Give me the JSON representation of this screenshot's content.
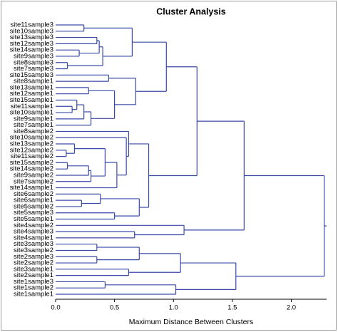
{
  "chart_data": {
    "type": "dendrogram",
    "title": "Cluster Analysis",
    "x_label": "Maximum Distance Between Clusters",
    "color": "#3a4aa8",
    "xlim": [
      0,
      2.3
    ],
    "xticks": [
      {
        "value": 0,
        "label": "0.0"
      },
      0.5,
      {
        "value": 1,
        "label": "1.0"
      },
      1.5,
      {
        "value": 2,
        "label": "2.0"
      }
    ],
    "tree": {
      "height": 2.28,
      "children": [
        {
          "height": 1.6,
          "children": [
            {
              "height": 1.2,
              "children": [
                {
                  "height": 0.94,
                  "children": [
                    {
                      "height": 0.65,
                      "children": [
                        {
                          "height": 0.24,
                          "children": [
                            {
                              "label": "site11sample3"
                            },
                            {
                              "label": "site10sample3"
                            }
                          ]
                        },
                        {
                          "height": 0.4,
                          "children": [
                            {
                              "height": 0.37,
                              "children": [
                                {
                                  "height": 0.35,
                                  "children": [
                                    {
                                      "label": "site13sample3"
                                    },
                                    {
                                      "label": "site12sample3"
                                    }
                                  ]
                                },
                                {
                                  "height": 0.2,
                                  "children": [
                                    {
                                      "label": "site14sample3"
                                    },
                                    {
                                      "label": "site9sample3"
                                    }
                                  ]
                                }
                              ]
                            },
                            {
                              "height": 0.1,
                              "children": [
                                {
                                  "label": "site8sample3"
                                },
                                {
                                  "label": "site7sample3"
                                }
                              ]
                            }
                          ]
                        }
                      ]
                    },
                    {
                      "height": 0.68,
                      "children": [
                        {
                          "height": 0.45,
                          "children": [
                            {
                              "label": "site15sample3"
                            },
                            {
                              "label": "site8sample1"
                            }
                          ]
                        },
                        {
                          "height": 0.5,
                          "children": [
                            {
                              "height": 0.28,
                              "children": [
                                {
                                  "label": "site13sample1"
                                },
                                {
                                  "label": "site12sample1"
                                }
                              ]
                            },
                            {
                              "height": 0.3,
                              "children": [
                                {
                                  "height": 0.24,
                                  "children": [
                                    {
                                      "height": 0.18,
                                      "children": [
                                        {
                                          "label": "site15sample1"
                                        },
                                        {
                                          "height": 0.14,
                                          "children": [
                                            {
                                              "label": "site11sample1"
                                            },
                                            {
                                              "label": "site10sample1"
                                            }
                                          ]
                                        }
                                      ]
                                    },
                                    {
                                      "label": "site9sample1"
                                    }
                                  ]
                                },
                                {
                                  "label": "site7sample1"
                                }
                              ]
                            }
                          ]
                        }
                      ]
                    }
                  ]
                },
                {
                  "height": 0.79,
                  "children": [
                    {
                      "height": 0.62,
                      "children": [
                        {
                          "label": "site8sample2"
                        },
                        {
                          "height": 0.6,
                          "children": [
                            {
                              "label": "site10sample2"
                            },
                            {
                              "height": 0.52,
                              "children": [
                                {
                                  "height": 0.42,
                                  "children": [
                                    {
                                      "height": 0.16,
                                      "children": [
                                        {
                                          "label": "site13sample2"
                                        },
                                        {
                                          "height": 0.09,
                                          "children": [
                                            {
                                              "label": "site12sample2"
                                            },
                                            {
                                              "label": "site11sample2"
                                            }
                                          ]
                                        }
                                      ]
                                    },
                                    {
                                      "height": 0.3,
                                      "children": [
                                        {
                                          "height": 0.28,
                                          "children": [
                                            {
                                              "height": 0.1,
                                              "children": [
                                                {
                                                  "label": "site15sample2"
                                                },
                                                {
                                                  "label": "site14sample2"
                                                }
                                              ]
                                            },
                                            {
                                              "label": "site9sample2"
                                            }
                                          ]
                                        },
                                        {
                                          "label": "site7sample2"
                                        }
                                      ]
                                    }
                                  ]
                                },
                                {
                                  "label": "site14sample1"
                                }
                              ]
                            }
                          ]
                        }
                      ]
                    },
                    {
                      "height": 0.71,
                      "children": [
                        {
                          "height": 0.38,
                          "children": [
                            {
                              "label": "site6sample2"
                            },
                            {
                              "height": 0.22,
                              "children": [
                                {
                                  "label": "site6sample1"
                                },
                                {
                                  "label": "site5sample2"
                                }
                              ]
                            }
                          ]
                        },
                        {
                          "height": 0.5,
                          "children": [
                            {
                              "label": "site5sample3"
                            },
                            {
                              "label": "site5sample1"
                            }
                          ]
                        }
                      ]
                    }
                  ]
                }
              ]
            },
            {
              "height": 1.09,
              "children": [
                {
                  "label": "site4sample2"
                },
                {
                  "height": 0.67,
                  "children": [
                    {
                      "label": "site4sample3"
                    },
                    {
                      "label": "site4sample1"
                    }
                  ]
                }
              ]
            }
          ]
        },
        {
          "height": 1.53,
          "children": [
            {
              "height": 1.06,
              "children": [
                {
                  "height": 0.71,
                  "children": [
                    {
                      "height": 0.35,
                      "children": [
                        {
                          "label": "site3sample3"
                        },
                        {
                          "label": "site3sample2"
                        }
                      ]
                    },
                    {
                      "height": 0.35,
                      "children": [
                        {
                          "label": "site2sample3"
                        },
                        {
                          "label": "site2sample2"
                        }
                      ]
                    }
                  ]
                },
                {
                  "height": 0.62,
                  "children": [
                    {
                      "label": "site3sample1"
                    },
                    {
                      "label": "site2sample1"
                    }
                  ]
                }
              ]
            },
            {
              "height": 1.02,
              "children": [
                {
                  "height": 0.42,
                  "children": [
                    {
                      "label": "site1sample3"
                    },
                    {
                      "label": "site1sample2"
                    }
                  ]
                },
                {
                  "label": "site1sample1"
                }
              ]
            }
          ]
        }
      ]
    }
  }
}
